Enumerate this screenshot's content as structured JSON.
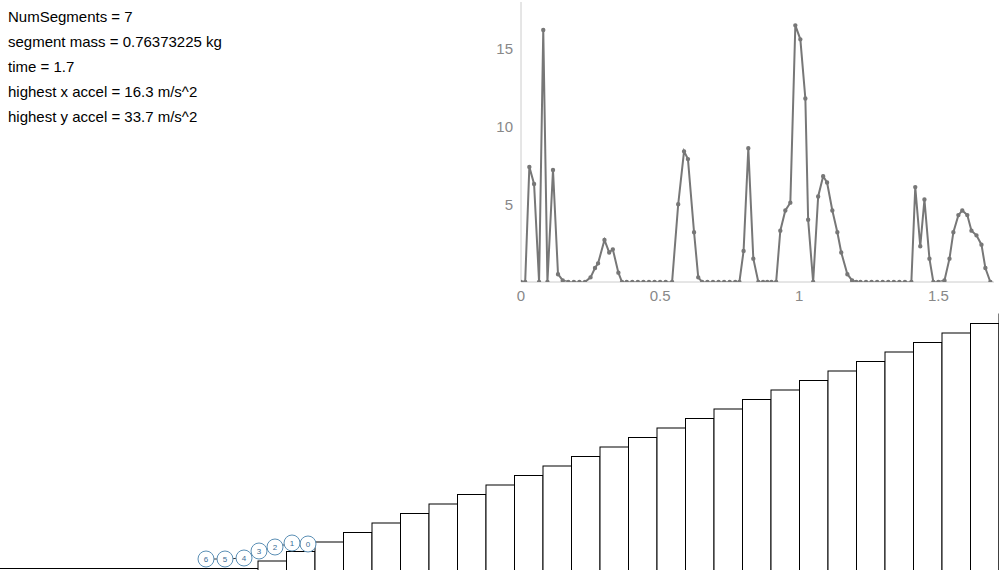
{
  "info": [
    "NumSegments = 7",
    "segment mass = 0.76373225 kg",
    "time = 1.7",
    "highest x accel = 16.3 m/s^2",
    "highest y accel = 33.7 m/s^2"
  ],
  "chart_data": {
    "type": "line",
    "color": "#777777",
    "marker": "circle",
    "grid": false,
    "xlim": [
      0,
      1.7
    ],
    "xticks": [
      0,
      0.5,
      1,
      1.5
    ],
    "ylim": [
      0,
      18
    ],
    "yticks": [
      5,
      10,
      15
    ],
    "x": [
      0,
      0.015,
      0.03,
      0.047,
      0.065,
      0.08,
      0.095,
      0.115,
      0.133,
      0.15,
      0.17,
      0.19,
      0.21,
      0.23,
      0.25,
      0.266,
      0.277,
      0.3,
      0.317,
      0.33,
      0.35,
      0.363,
      0.38,
      0.4,
      0.42,
      0.44,
      0.46,
      0.48,
      0.5,
      0.52,
      0.543,
      0.565,
      0.586,
      0.6,
      0.622,
      0.637,
      0.651,
      0.67,
      0.69,
      0.71,
      0.73,
      0.75,
      0.77,
      0.785,
      0.8,
      0.817,
      0.835,
      0.853,
      0.87,
      0.885,
      0.9,
      0.917,
      0.932,
      0.95,
      0.968,
      0.986,
      1.004,
      1.022,
      1.032,
      1.05,
      1.068,
      1.086,
      1.1,
      1.119,
      1.137,
      1.151,
      1.173,
      1.19,
      1.205,
      1.22,
      1.24,
      1.26,
      1.28,
      1.3,
      1.32,
      1.34,
      1.36,
      1.38,
      1.403,
      1.417,
      1.435,
      1.45,
      1.468,
      1.482,
      1.5,
      1.522,
      1.54,
      1.554,
      1.572,
      1.586,
      1.604,
      1.619,
      1.637,
      1.655,
      1.669,
      1.687
    ],
    "values": [
      0,
      0,
      7.4,
      6.3,
      0,
      16.2,
      0,
      7.2,
      0.5,
      0.1,
      0,
      0,
      0,
      0,
      0.3,
      0.9,
      1.2,
      2.7,
      1.9,
      2.1,
      0.6,
      0,
      0,
      0,
      0,
      0,
      0,
      0,
      0,
      0,
      0,
      5,
      8.4,
      7.9,
      3.2,
      0.3,
      0,
      0,
      0,
      0,
      0,
      0,
      0,
      0,
      2,
      8.6,
      1.5,
      0,
      0,
      0,
      0,
      0,
      3.3,
      4.6,
      5.1,
      16.5,
      15.6,
      11.8,
      4,
      0,
      5.5,
      6.8,
      6.4,
      4.6,
      3.2,
      1.9,
      0.5,
      0.1,
      0,
      0,
      0,
      0,
      0,
      0,
      0,
      0,
      0,
      0,
      0,
      6.1,
      2.3,
      5.3,
      1.5,
      0,
      0,
      0.1,
      1.5,
      3.2,
      4.3,
      4.6,
      4.3,
      3.3,
      3,
      2.4,
      0.9,
      0
    ]
  },
  "scene": {
    "segment_labels": [
      "0",
      "1",
      "2",
      "3",
      "4",
      "5",
      "6"
    ]
  }
}
